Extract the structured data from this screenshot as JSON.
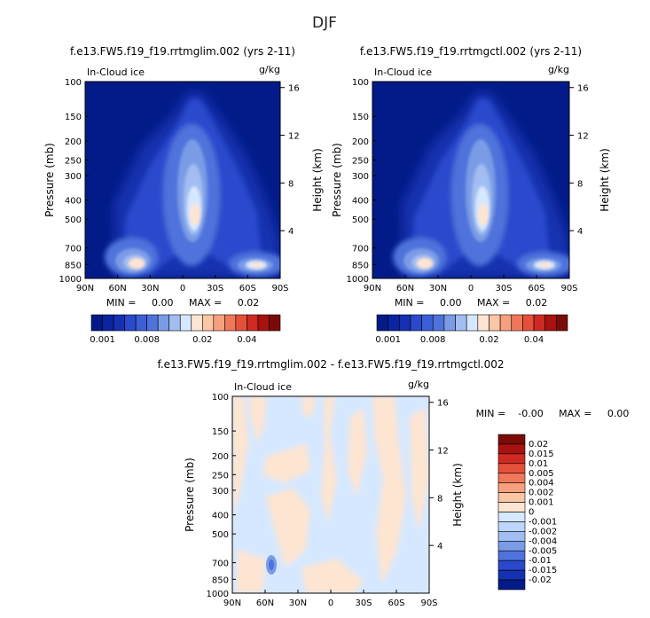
{
  "page_title": "DJF",
  "colors": {
    "pos": [
      "#fde5d2",
      "#fbc6a6",
      "#f7a07e",
      "#f0785a",
      "#e5503b",
      "#cf2a22",
      "#a8120f",
      "#7a0b07"
    ],
    "neg": [
      "#d6e8ff",
      "#bdd6fb",
      "#a1bdf2",
      "#7a9ce6",
      "#4f73dc",
      "#2a49cc",
      "#1530b0",
      "#031b88"
    ]
  },
  "chart_data": [
    {
      "type": "heatmap",
      "id": "panel1",
      "title": "f.e13.FW5.f19_f19.rrtmglim.002 (yrs 2-11)",
      "field_label": "In-Cloud ice",
      "units": "g/kg",
      "ylabel": "Pressure (mb)",
      "y2label": "Height (km)",
      "pressure_ticks": [
        100,
        150,
        200,
        250,
        300,
        400,
        500,
        700,
        850,
        1000
      ],
      "height_ticks": [
        4,
        8,
        12,
        16
      ],
      "x_ticks": [
        "90N",
        "60N",
        "30N",
        "0",
        "30S",
        "60S",
        "90S"
      ],
      "stats": "MIN =     0.00     MAX =     0.02",
      "colorbar": {
        "levels": [
          0.001,
          0.002,
          0.004,
          0.006,
          0.008,
          0.01,
          0.012,
          0.014,
          0.016,
          0.02,
          0.025,
          0.03,
          0.035,
          0.04,
          0.045,
          0.05
        ],
        "tick_labels": [
          "0.001",
          "0.008",
          "0.02",
          "0.04"
        ],
        "colors": [
          "#031b88",
          "#0a23a0",
          "#1530b0",
          "#2a49cc",
          "#3c5fd6",
          "#4f73dc",
          "#7a9ce6",
          "#a1bdf2",
          "#d6e8ff",
          "#fde5d2",
          "#fbc6a6",
          "#f7a07e",
          "#f0785a",
          "#e5503b",
          "#cf2a22",
          "#a8120f",
          "#7a0b07"
        ]
      },
      "features": [
        {
          "lat": 0,
          "p": 150,
          "value": 0.004
        },
        {
          "lat": 0,
          "p": 300,
          "value": 0.015
        },
        {
          "lat": 0,
          "p": 480,
          "value": 0.025
        },
        {
          "lat": 45,
          "p": 800,
          "value": 0.02
        },
        {
          "lat": -60,
          "p": 850,
          "value": 0.02
        }
      ]
    },
    {
      "type": "heatmap",
      "id": "panel2",
      "title": "f.e13.FW5.f19_f19.rrtmgctl.002 (yrs 2-11)",
      "field_label": "In-Cloud ice",
      "units": "g/kg",
      "ylabel": "Pressure (mb)",
      "y2label": "Height (km)",
      "pressure_ticks": [
        100,
        150,
        200,
        250,
        300,
        400,
        500,
        700,
        850,
        1000
      ],
      "height_ticks": [
        4,
        8,
        12,
        16
      ],
      "x_ticks": [
        "90N",
        "60N",
        "30N",
        "0",
        "30S",
        "60S",
        "90S"
      ],
      "stats": "MIN =     0.00     MAX =     0.02",
      "colorbar": {
        "levels": [
          0.001,
          0.002,
          0.004,
          0.006,
          0.008,
          0.01,
          0.012,
          0.014,
          0.016,
          0.02,
          0.025,
          0.03,
          0.035,
          0.04,
          0.045,
          0.05
        ],
        "tick_labels": [
          "0.001",
          "0.008",
          "0.02",
          "0.04"
        ],
        "colors": [
          "#031b88",
          "#0a23a0",
          "#1530b0",
          "#2a49cc",
          "#3c5fd6",
          "#4f73dc",
          "#7a9ce6",
          "#a1bdf2",
          "#d6e8ff",
          "#fde5d2",
          "#fbc6a6",
          "#f7a07e",
          "#f0785a",
          "#e5503b",
          "#cf2a22",
          "#a8120f",
          "#7a0b07"
        ]
      }
    },
    {
      "type": "heatmap",
      "id": "panel3",
      "title": "f.e13.FW5.f19_f19.rrtmglim.002 - f.e13.FW5.f19_f19.rrtmgctl.002",
      "field_label": "In-Cloud ice",
      "units": "g/kg",
      "ylabel": "Pressure (mb)",
      "y2label": "Height (km)",
      "pressure_ticks": [
        100,
        150,
        200,
        250,
        300,
        400,
        500,
        700,
        850,
        1000
      ],
      "height_ticks": [
        4,
        8,
        12,
        16
      ],
      "x_ticks": [
        "90N",
        "60N",
        "30N",
        "0",
        "30S",
        "60S",
        "90S"
      ],
      "stats": "MIN =    -0.00     MAX =     0.00",
      "colorbar": {
        "labels": [
          "0.02",
          "0.015",
          "0.01",
          "0.005",
          "0.004",
          "0.002",
          "0.001",
          "0",
          "-0.001",
          "-0.002",
          "-0.004",
          "-0.005",
          "-0.01",
          "-0.015",
          "-0.02"
        ],
        "colors": [
          "#7a0b07",
          "#a8120f",
          "#cf2a22",
          "#e5503b",
          "#f0785a",
          "#f7a07e",
          "#fbc6a6",
          "#fde5d2",
          "#d6e8ff",
          "#bdd6fb",
          "#a1bdf2",
          "#7a9ce6",
          "#4f73dc",
          "#2a49cc",
          "#1530b0",
          "#031b88"
        ]
      }
    }
  ]
}
